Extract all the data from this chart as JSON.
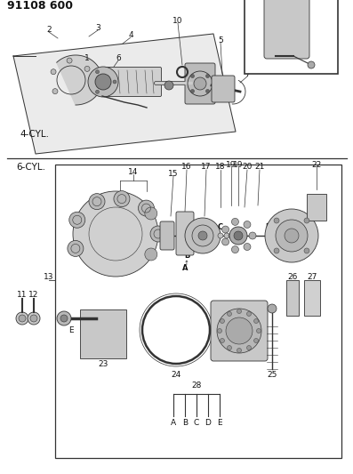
{
  "title": "91108 600",
  "bg_color": "#ffffff",
  "section1_label": "4-CYL.",
  "section2_label": "6-CYL.",
  "line_color": "#333333",
  "gray_light": "#d0d0d0",
  "gray_mid": "#aaaaaa",
  "gray_dark": "#777777",
  "white": "#ffffff",
  "font_size_title": 9,
  "font_size_label": 6.5,
  "font_size_section": 7.5
}
